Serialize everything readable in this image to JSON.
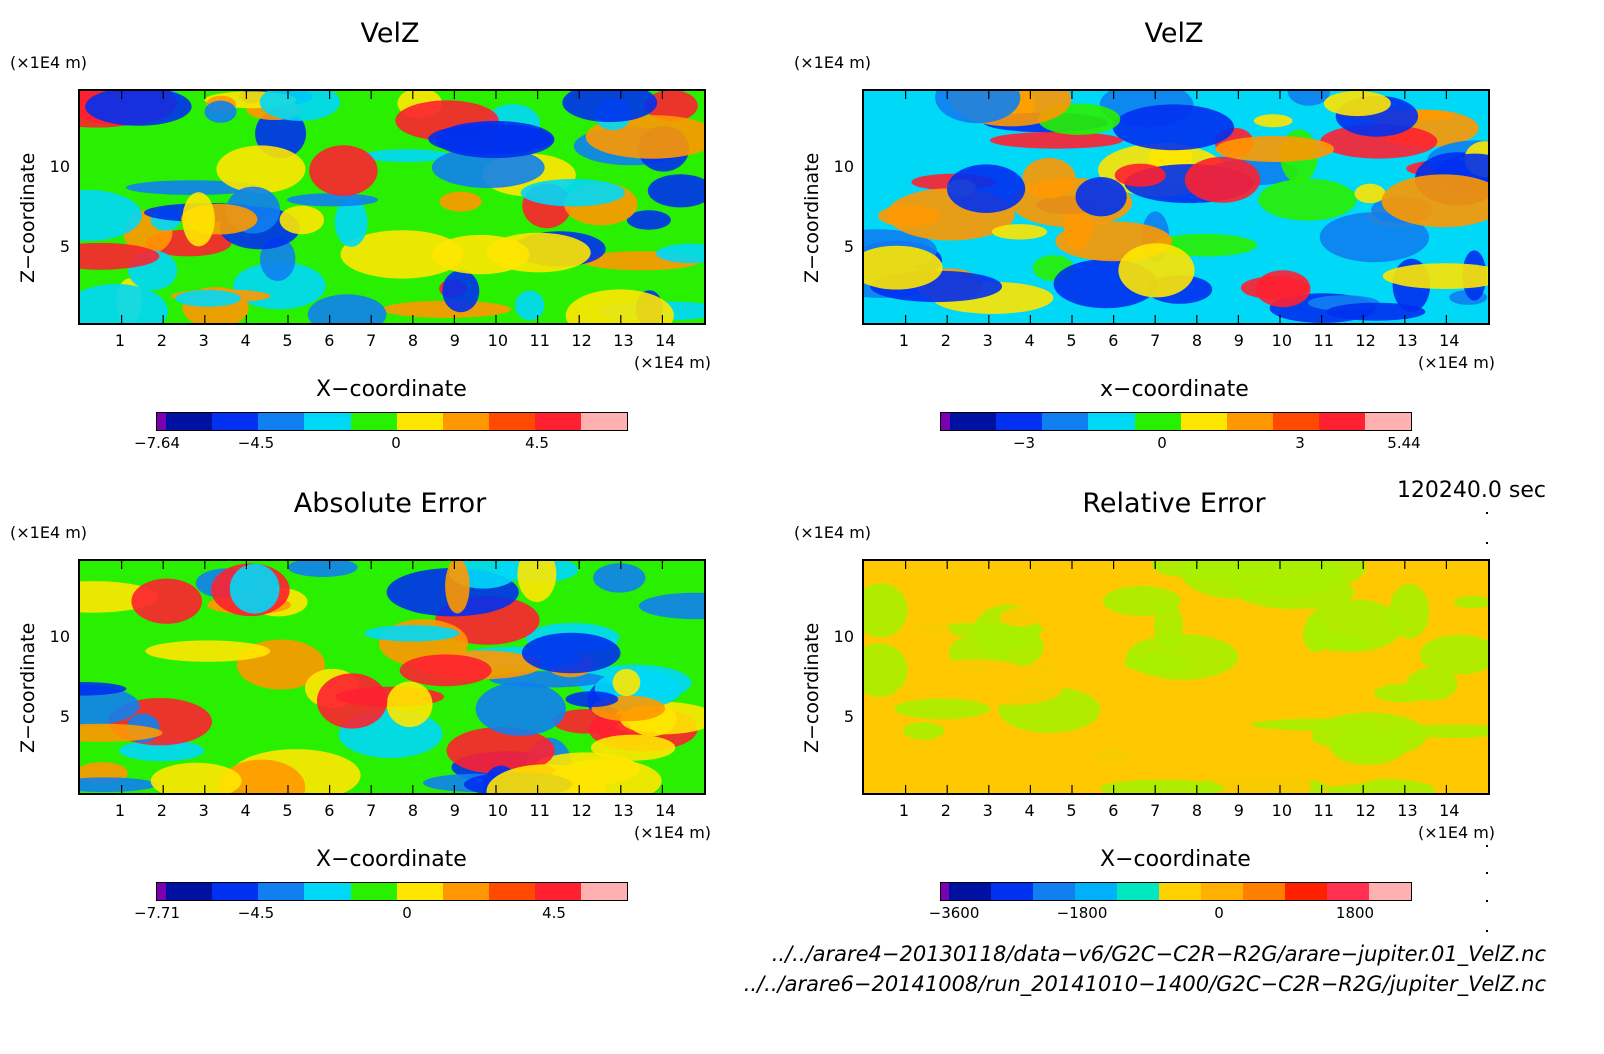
{
  "panels": [
    {
      "title": "VelZ",
      "xlabel": "X−coordinate",
      "ylabel": "Z−coordinate",
      "unit_label": "(×1E4 m)",
      "colorbar_labels": [
        "−7.64",
        "−4.5",
        "0",
        "4.5"
      ],
      "colorbar_colors": [
        "#7a00b0",
        "#0010a0",
        "#0030f0",
        "#1080f0",
        "#00d8f8",
        "#28f000",
        "#ffe600",
        "#ff9800",
        "#ff4a00",
        "#ff2030",
        "#ffb0b0"
      ],
      "field_colors": {
        "bg": "#28f000",
        "hot": "#ff9800",
        "warm": "#ffe600",
        "cool": "#00d8f8",
        "cold": "#1080f0",
        "vhot": "#ff2030"
      }
    },
    {
      "title": "VelZ",
      "xlabel": "x−coordinate",
      "ylabel": "Z−coordinate",
      "unit_label": "(×1E4 m)",
      "colorbar_labels": [
        "−3",
        "0",
        "3",
        "5.44"
      ],
      "colorbar_colors": [
        "#7a00b0",
        "#0010a0",
        "#0030f0",
        "#1080f0",
        "#00d8f8",
        "#28f000",
        "#ffe600",
        "#ff9800",
        "#ff4a00",
        "#ff2030",
        "#ffb0b0"
      ]
    },
    {
      "title": "Absolute Error",
      "xlabel": "X−coordinate",
      "ylabel": "Z−coordinate",
      "unit_label": "(×1E4 m)",
      "colorbar_labels": [
        "−7.71",
        "−4.5",
        "0",
        "4.5"
      ],
      "colorbar_colors": [
        "#7a00b0",
        "#0010a0",
        "#0030f0",
        "#1080f0",
        "#00d8f8",
        "#28f000",
        "#ffe600",
        "#ff9800",
        "#ff4a00",
        "#ff2030",
        "#ffb0b0"
      ]
    },
    {
      "title": "Relative Error",
      "xlabel": "X−coordinate",
      "ylabel": "Z−coordinate",
      "unit_label": "(×1E4 m)",
      "colorbar_labels": [
        "−3600",
        "−1800",
        "0",
        "1800"
      ],
      "colorbar_colors": [
        "#7a00b0",
        "#0010a0",
        "#0030f0",
        "#1080f0",
        "#00b0f8",
        "#00e8c0",
        "#ffd000",
        "#ffb000",
        "#ff8000",
        "#ff2000",
        "#ff3050",
        "#ffb0b0"
      ]
    }
  ],
  "time_label": "120240.0 sec",
  "footer": {
    "line1": "../../arare4−20130118/data−v6/G2C−C2R−R2G/arare−jupiter.01_VelZ.nc",
    "line2": "../../arare6−20141008/run_20141010−1400/G2C−C2R−R2G/jupiter_VelZ.nc"
  },
  "chart_data": [
    {
      "type": "heatmap",
      "title": "VelZ",
      "xlabel": "X−coordinate",
      "ylabel": "Z−coordinate",
      "x_unit": "(×1E4 m)",
      "y_unit": "(×1E4 m)",
      "xticks": [
        1,
        2,
        3,
        4,
        5,
        6,
        7,
        8,
        9,
        10,
        11,
        12,
        13,
        14
      ],
      "yticks": [
        5,
        10
      ],
      "xlim": [
        0,
        15
      ],
      "ylim": [
        0,
        15
      ],
      "colorbar": {
        "min": -7.64,
        "ticks": [
          -7.64,
          -4.5,
          0,
          4.5
        ]
      }
    },
    {
      "type": "heatmap",
      "title": "VelZ",
      "xlabel": "x−coordinate",
      "ylabel": "Z−coordinate",
      "x_unit": "(×1E4 m)",
      "y_unit": "(×1E4 m)",
      "xticks": [
        1,
        2,
        3,
        4,
        5,
        6,
        7,
        8,
        9,
        10,
        11,
        12,
        13,
        14
      ],
      "yticks": [
        5,
        10
      ],
      "xlim": [
        0,
        15
      ],
      "ylim": [
        0,
        15
      ],
      "colorbar": {
        "max": 5.44,
        "ticks": [
          -3,
          0,
          3,
          5.44
        ]
      }
    },
    {
      "type": "heatmap",
      "title": "Absolute Error",
      "xlabel": "X−coordinate",
      "ylabel": "Z−coordinate",
      "x_unit": "(×1E4 m)",
      "y_unit": "(×1E4 m)",
      "xticks": [
        1,
        2,
        3,
        4,
        5,
        6,
        7,
        8,
        9,
        10,
        11,
        12,
        13,
        14
      ],
      "yticks": [
        5,
        10
      ],
      "xlim": [
        0,
        15
      ],
      "ylim": [
        0,
        15
      ],
      "colorbar": {
        "min": -7.71,
        "ticks": [
          -7.71,
          -4.5,
          0,
          4.5
        ]
      }
    },
    {
      "type": "heatmap",
      "title": "Relative Error",
      "xlabel": "X−coordinate",
      "ylabel": "Z−coordinate",
      "x_unit": "(×1E4 m)",
      "y_unit": "(×1E4 m)",
      "xticks": [
        1,
        2,
        3,
        4,
        5,
        6,
        7,
        8,
        9,
        10,
        11,
        12,
        13,
        14
      ],
      "yticks": [
        5,
        10
      ],
      "xlim": [
        0,
        15
      ],
      "ylim": [
        0,
        15
      ],
      "colorbar": {
        "ticks": [
          -3600,
          -1800,
          0,
          1800
        ]
      }
    }
  ]
}
